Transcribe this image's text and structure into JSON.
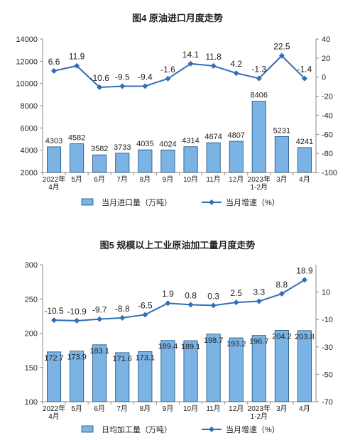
{
  "chart_data": [
    {
      "type": "bar",
      "title": "图4  原油进口月度走势",
      "categories": [
        "2022年\n4月",
        "5月",
        "6月",
        "7月",
        "8月",
        "9月",
        "10月",
        "11月",
        "12月",
        "2023年\n1-2月",
        "3月",
        "4月"
      ],
      "series": [
        {
          "name": "当月进口量（万吨）",
          "type": "bar",
          "color": "#7ab3e4",
          "values": [
            4303,
            4582,
            3582,
            3733,
            4035,
            4024,
            4314,
            4674,
            4807,
            8406,
            5231,
            4241
          ]
        },
        {
          "name": "当月增速（%）",
          "type": "line",
          "axis": "y2",
          "color": "#2f6fb5",
          "values": [
            6.6,
            11.9,
            -10.6,
            -9.5,
            -9.4,
            -1.6,
            14.1,
            11.8,
            4.2,
            -1.3,
            22.5,
            -1.4
          ]
        }
      ],
      "ylim": [
        2000,
        14000
      ],
      "yticks": [
        2000,
        4000,
        6000,
        8000,
        10000,
        12000,
        14000
      ],
      "y2lim": [
        -100,
        40
      ],
      "y2ticks": [
        -100,
        -80,
        -60,
        -40,
        -20,
        0,
        20,
        40
      ]
    },
    {
      "type": "bar",
      "title": "图5  规模以上工业原油加工量月度走势",
      "categories": [
        "2022年\n4月",
        "5月",
        "6月",
        "7月",
        "8月",
        "9月",
        "10月",
        "11月",
        "12月",
        "2023年\n1-2月",
        "3月",
        "4月"
      ],
      "series": [
        {
          "name": "日均加工量（万吨）",
          "type": "bar",
          "color": "#7ab3e4",
          "values": [
            172.7,
            173.9,
            183.1,
            171.6,
            173.1,
            189.4,
            189.1,
            198.7,
            193.2,
            196.7,
            204.2,
            203.8
          ]
        },
        {
          "name": "当月增速（%）",
          "type": "line",
          "axis": "y2",
          "color": "#2f6fb5",
          "values": [
            -10.5,
            -10.9,
            -9.7,
            -8.8,
            -6.5,
            1.9,
            0.8,
            0.3,
            2.5,
            3.3,
            8.8,
            18.9
          ]
        }
      ],
      "ylim": [
        100,
        300
      ],
      "yticks": [
        100,
        150,
        200,
        250,
        300
      ],
      "y2lim": [
        -70,
        30
      ],
      "y2ticks": [
        -70,
        -50,
        -30,
        -10,
        10
      ]
    }
  ]
}
